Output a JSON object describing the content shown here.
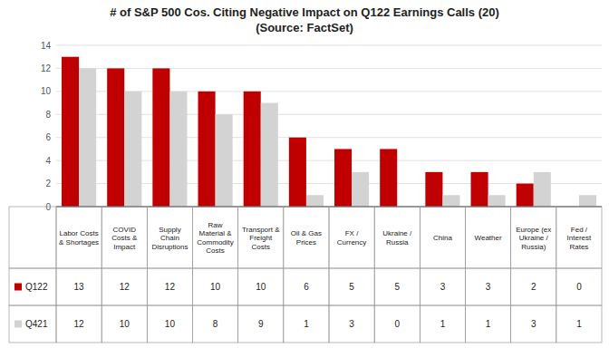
{
  "chart_data": {
    "type": "bar",
    "title": "# of S&P 500 Cos. Citing Negative Impact on Q122 Earnings Calls (20)",
    "subtitle": "(Source: FactSet)",
    "categories": [
      "Labor Costs\n& Shortages",
      "COVID\nCosts &\nImpact",
      "Supply\nChain\nDisruptions",
      "Raw\nMaterial &\nCommodity\nCosts",
      "Transport &\nFreight\nCosts",
      "Oil & Gas\nPrices",
      "FX /\nCurrency",
      "Ukraine /\nRussia",
      "China",
      "Weather",
      "Europe (ex\nUkraine /\nRussia)",
      "Fed /\nInterest\nRates"
    ],
    "series": [
      {
        "name": "Q122",
        "color": "#C00000",
        "values": [
          13,
          12,
          12,
          10,
          10,
          6,
          5,
          5,
          3,
          3,
          2,
          0
        ]
      },
      {
        "name": "Q421",
        "color": "#D3D3D3",
        "values": [
          12,
          10,
          10,
          8,
          9,
          1,
          3,
          0,
          1,
          1,
          3,
          1
        ]
      }
    ],
    "ylim": [
      0,
      14
    ],
    "yticks": [
      0,
      2,
      4,
      6,
      8,
      10,
      12,
      14
    ],
    "grid": true
  }
}
